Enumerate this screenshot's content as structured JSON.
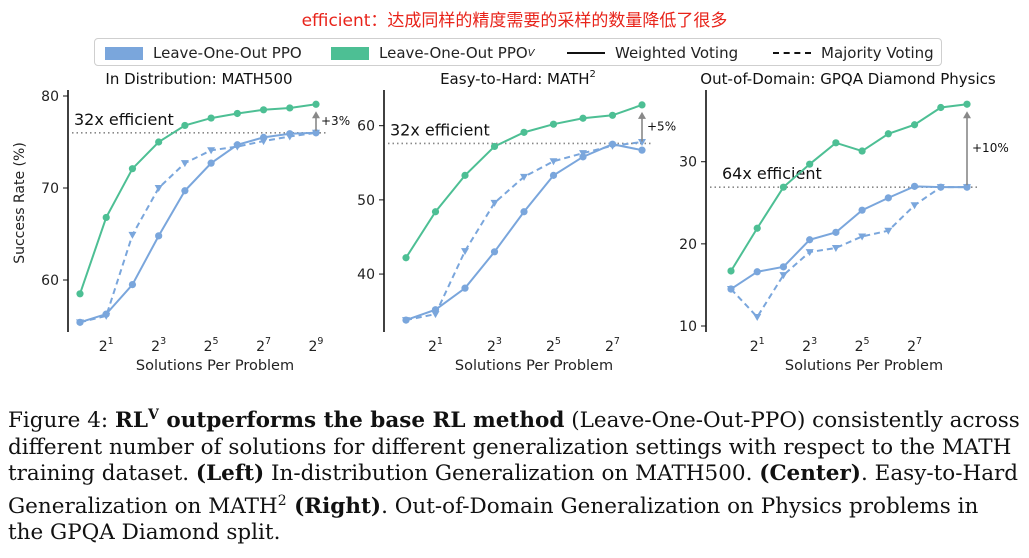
{
  "annotation": "efficient：达成同样的精度需要的采样的数量降低了很多",
  "legend": {
    "items": [
      {
        "label": "Leave-One-Out PPO",
        "sup": "",
        "kind": "swatch",
        "color": "#7aa6dc"
      },
      {
        "label": "Leave-One-Out PPO",
        "sup": "V",
        "kind": "swatch",
        "color": "#4dbf94"
      },
      {
        "label": "Weighted Voting",
        "sup": "",
        "kind": "solid",
        "color": "#111111"
      },
      {
        "label": "Majority Voting",
        "sup": "",
        "kind": "dashed",
        "color": "#111111"
      }
    ]
  },
  "colors": {
    "loo_ppo": "#7aa6dc",
    "loo_ppo_v": "#4dbf94",
    "reference": "#888888"
  },
  "chart_data": [
    {
      "type": "line",
      "title": "In Distribution: MATH500",
      "xlabel": "Solutions Per Problem",
      "ylabel": "Success Rate (%)",
      "x_scale": "log2",
      "x": [
        1,
        2,
        4,
        8,
        16,
        32,
        64,
        128,
        256,
        512
      ],
      "xticks": [
        "2^1",
        "2^3",
        "2^5",
        "2^7",
        "2^9"
      ],
      "yticks": [
        60,
        70,
        80
      ],
      "ylim": [
        55,
        80
      ],
      "series": [
        {
          "name": "Leave-One-Out PPO V",
          "style": "solid",
          "values": [
            58.5,
            66.8,
            72.1,
            75.0,
            76.8,
            77.6,
            78.1,
            78.5,
            78.7,
            79.1
          ]
        },
        {
          "name": "Leave-One-Out PPO",
          "style": "solid",
          "values": [
            55.4,
            56.3,
            59.5,
            64.8,
            69.7,
            72.7,
            74.7,
            75.5,
            75.9,
            76.0
          ]
        },
        {
          "name": "Leave-One-Out PPO",
          "style": "dashed",
          "values": [
            55.4,
            56.1,
            64.9,
            70.0,
            72.7,
            74.1,
            74.5,
            75.1,
            75.6,
            76.0
          ]
        }
      ],
      "reference_y": 76.0,
      "efficiency_label": "32x efficient",
      "gain_label": "+3%"
    },
    {
      "type": "line",
      "title": "Easy-to-Hard: MATH",
      "title_sup": "2",
      "xlabel": "Solutions Per Problem",
      "ylabel": "",
      "x_scale": "log2",
      "x": [
        1,
        2,
        4,
        8,
        16,
        32,
        64,
        128,
        256
      ],
      "xticks": [
        "2^1",
        "2^3",
        "2^5",
        "2^7"
      ],
      "yticks": [
        40,
        50,
        60
      ],
      "ylim": [
        33,
        64
      ],
      "series": [
        {
          "name": "Leave-One-Out PPO V",
          "style": "solid",
          "values": [
            42.2,
            48.4,
            53.3,
            57.2,
            59.1,
            60.2,
            61.0,
            61.4,
            62.8
          ]
        },
        {
          "name": "Leave-One-Out PPO",
          "style": "solid",
          "values": [
            33.8,
            35.2,
            38.1,
            43.0,
            48.4,
            53.3,
            55.8,
            57.5,
            56.7
          ]
        },
        {
          "name": "Leave-One-Out PPO",
          "style": "dashed",
          "values": [
            33.8,
            34.6,
            43.1,
            49.6,
            53.1,
            55.2,
            56.3,
            57.3,
            57.8
          ]
        }
      ],
      "reference_y": 57.6,
      "efficiency_label": "32x efficient",
      "gain_label": "+5%"
    },
    {
      "type": "line",
      "title": "Out-of-Domain: GPQA Diamond Physics",
      "xlabel": "Solutions Per Problem",
      "ylabel": "",
      "x_scale": "log2",
      "x": [
        1,
        2,
        4,
        8,
        16,
        32,
        64,
        128,
        256,
        512
      ],
      "xticks": [
        "2^1",
        "2^3",
        "2^5",
        "2^7"
      ],
      "yticks": [
        10,
        20,
        30
      ],
      "ylim": [
        10,
        38
      ],
      "series": [
        {
          "name": "Leave-One-Out PPO V",
          "style": "solid",
          "values": [
            16.7,
            21.9,
            26.9,
            29.7,
            32.3,
            31.3,
            33.4,
            34.5,
            36.6,
            37.0
          ]
        },
        {
          "name": "Leave-One-Out PPO",
          "style": "solid",
          "values": [
            14.5,
            16.6,
            17.2,
            20.5,
            21.4,
            24.1,
            25.6,
            27.0,
            26.9,
            26.9
          ]
        },
        {
          "name": "Leave-One-Out PPO",
          "style": "dashed",
          "values": [
            14.5,
            11.1,
            16.2,
            19.0,
            19.5,
            20.9,
            21.6,
            24.7,
            26.9,
            26.9
          ]
        }
      ],
      "reference_y": 26.9,
      "efficiency_label": "64x efficient",
      "gain_label": "+10%"
    }
  ],
  "caption": {
    "figure_label": "Figure 4:",
    "bold_title": "RL",
    "bold_title_sup": "V",
    "bold_title_rest": " outperforms the base RL method",
    "text1": " (Leave-One-Out-PPO) consistently across",
    "line2": "different number of solutions for different generalization settings with respect to the MATH",
    "line3_a": "training dataset. ",
    "line3_b": "(Left)",
    "line3_c": " In-distribution Generalization on MATH500. ",
    "line3_d": "(Center)",
    "line3_e": ". Easy-to-Hard",
    "line4_a": "Generalization on MATH",
    "line4_sup": "2",
    "line4_b": " (Right)",
    "line4_c": ". Out-of-Domain Generalization on Physics problems in",
    "line5": "the GPQA Diamond split."
  }
}
